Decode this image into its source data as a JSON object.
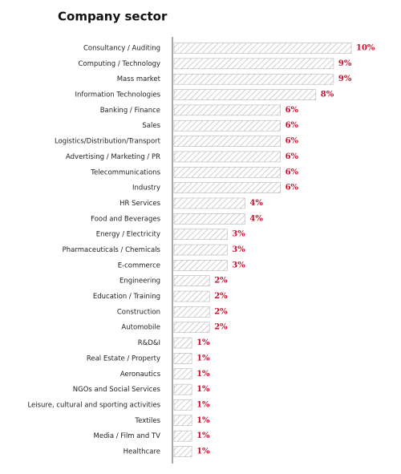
{
  "chart_data": {
    "type": "bar",
    "orientation": "horizontal",
    "title": "Company sector",
    "categories": [
      "Consultancy / Auditing",
      "Computing / Technology",
      "Mass market",
      "Information Technologies",
      "Banking / Finance",
      "Sales",
      "Logistics/Distribution/Transport",
      "Advertising / Marketing / PR",
      "Telecommunications",
      "Industry",
      "HR Services",
      "Food and Beverages",
      "Energy / Electricity",
      "Pharmaceuticals / Chemicals",
      "E-commerce",
      "Engineering",
      "Education / Training",
      "Construction",
      "Automobile",
      "R&D&I",
      "Real Estate / Property",
      "Aeronautics",
      "NGOs and Social Services",
      "Leisure, cultural and sporting activities",
      "Textiles",
      "Media / Film and TV",
      "Healthcare"
    ],
    "values": [
      10,
      9,
      9,
      8,
      6,
      6,
      6,
      6,
      6,
      6,
      4,
      4,
      3,
      3,
      3,
      2,
      2,
      2,
      2,
      1,
      1,
      1,
      1,
      1,
      1,
      1,
      1
    ],
    "value_labels": [
      "10%",
      "9%",
      "9%",
      "8%",
      "6%",
      "6%",
      "6%",
      "6%",
      "6%",
      "6%",
      "4%",
      "4%",
      "3%",
      "3%",
      "3%",
      "2%",
      "2%",
      "2%",
      "2%",
      "1%",
      "1%",
      "1%",
      "1%",
      "1%",
      "1%",
      "1%",
      "1%"
    ],
    "color": "#b5b5b5",
    "label_color": "#c8102e"
  }
}
